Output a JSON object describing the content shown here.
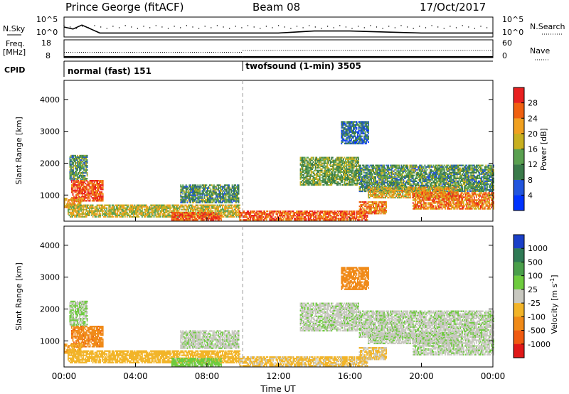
{
  "header": {
    "title": "Prince George (fitACF)",
    "beam": "Beam 08",
    "date": "17/Oct/2017"
  },
  "top_panels": {
    "nsky": {
      "label": "N.Sky",
      "ticks": [
        "10^5",
        "10^0"
      ],
      "right_label": "N.Search",
      "right_ticks": [
        "10^5",
        "10^0"
      ]
    },
    "freq": {
      "label_line1": "Freq.",
      "label_line2": "[MHz]",
      "ticks": [
        "18",
        "8"
      ],
      "right_label": "Nave",
      "right_ticks": [
        "60",
        "0"
      ]
    },
    "cpid": {
      "label": "CPID",
      "segments": [
        "normal (fast) 151",
        "twofsound (1-min) 3505"
      ]
    }
  },
  "axes": {
    "xlabel": "Time UT",
    "xticks": [
      "00:00",
      "04:00",
      "08:00",
      "12:00",
      "16:00",
      "20:00",
      "00:00"
    ],
    "ylabel": "Slant Range [km]",
    "yticks": [
      "1000",
      "2000",
      "3000",
      "4000"
    ]
  },
  "colorbars": {
    "power": {
      "label": "Power [dB]",
      "ticks": [
        "4",
        "8",
        "12",
        "16",
        "20",
        "24",
        "28"
      ],
      "colors": [
        "#0033ff",
        "#2255dd",
        "#3a7a4a",
        "#5aa050",
        "#c8b020",
        "#f0a020",
        "#f06010",
        "#e82020"
      ]
    },
    "velocity": {
      "label": "Velocity [m s",
      "label_sup": "-1",
      "label_end": "]",
      "ticks": [
        "1000",
        "500",
        "100",
        "25",
        "-25",
        "-100",
        "-500",
        "-1000"
      ],
      "colors": [
        "#1a3fc8",
        "#2f7a55",
        "#4a9f4a",
        "#6ecb3e",
        "#c8c8c0",
        "#f2b428",
        "#f08a18",
        "#f05a10",
        "#e01818"
      ]
    }
  },
  "chart_data": [
    {
      "type": "line",
      "x_hours": [
        0,
        0.5,
        1,
        1.5,
        2,
        4,
        8,
        12,
        14,
        16,
        20,
        24
      ],
      "series": [
        {
          "values": [
            2.5,
            2.0,
            3.0,
            2.0,
            1.0,
            1.0,
            1.0,
            1.0,
            1.5,
            1.5,
            1.0,
            1.0
          ]
        }
      ],
      "ylim": [
        0,
        5
      ]
    },
    {
      "type": "scatter",
      "x_hours": [
        0,
        10,
        10,
        24
      ],
      "series": [
        {
          "values": [
            11,
            11,
            12,
            12
          ]
        },
        {
          "values": [
            8.5,
            8.5,
            8.5,
            8.5
          ]
        }
      ],
      "ylim": [
        8,
        18
      ]
    },
    {
      "type": "heatmap",
      "cpid_change_hour": 10,
      "xlim": [
        0,
        24
      ],
      "ylim": [
        180,
        4600
      ],
      "features": [
        {
          "t0": 0.3,
          "t1": 1.3,
          "r0": 1450,
          "r1": 2250,
          "power": 12,
          "velocity": 25
        },
        {
          "t0": 0.4,
          "t1": 2.2,
          "r0": 800,
          "r1": 1450,
          "power": 27,
          "velocity": -350
        },
        {
          "t0": 0.0,
          "t1": 1.0,
          "r0": 600,
          "r1": 900,
          "power": 22,
          "velocity": -80
        },
        {
          "t0": 0.2,
          "t1": 9.8,
          "r0": 300,
          "r1": 700,
          "power": 18,
          "velocity": -60
        },
        {
          "t0": 6.0,
          "t1": 8.8,
          "r0": 200,
          "r1": 450,
          "power": 27,
          "velocity": 50
        },
        {
          "t0": 6.5,
          "t1": 9.8,
          "r0": 750,
          "r1": 1300,
          "power": 12,
          "velocity": 10
        },
        {
          "t0": 9.8,
          "t1": 17.0,
          "r0": 200,
          "r1": 500,
          "power": 26,
          "velocity": -40
        },
        {
          "t0": 13.2,
          "t1": 16.5,
          "r0": 1300,
          "r1": 2200,
          "power": 14,
          "velocity": 10
        },
        {
          "t0": 16.5,
          "t1": 24.0,
          "r0": 1100,
          "r1": 1950,
          "power": 12,
          "velocity": 10
        },
        {
          "t0": 17.0,
          "t1": 22.0,
          "r0": 900,
          "r1": 1250,
          "power": 20,
          "velocity": 10
        },
        {
          "t0": 16.5,
          "t1": 18.0,
          "r0": 400,
          "r1": 800,
          "power": 24,
          "velocity": -30
        },
        {
          "t0": 19.5,
          "t1": 24.0,
          "r0": 550,
          "r1": 1050,
          "power": 24,
          "velocity": 10
        },
        {
          "t0": 15.5,
          "t1": 17.0,
          "r0": 2600,
          "r1": 3300,
          "power": 8,
          "velocity": -300
        }
      ]
    }
  ]
}
